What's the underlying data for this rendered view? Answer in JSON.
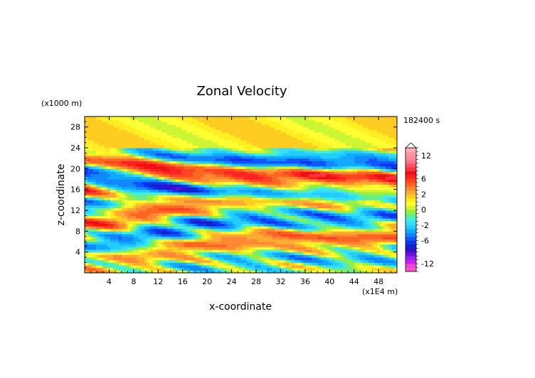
{
  "chart_data": {
    "type": "heatmap",
    "title": "Zonal Velocity",
    "xlabel": "x-coordinate",
    "ylabel": "z-coordinate",
    "x_unit": "(x1E4 m)",
    "y_unit": "(x1000 m)",
    "time_label": "182400 s",
    "xlim": [
      0,
      51
    ],
    "ylim": [
      0,
      30
    ],
    "x_ticks": [
      4,
      8,
      12,
      16,
      20,
      24,
      28,
      32,
      36,
      40,
      44,
      48
    ],
    "y_ticks": [
      4,
      8,
      12,
      16,
      20,
      24,
      28
    ],
    "colorbar": {
      "levels": [
        -14,
        -13,
        -12,
        -11,
        -10,
        -9,
        -8,
        -7,
        -6,
        -5,
        -4,
        -3,
        -2,
        -1.5,
        -1,
        -0.5,
        0,
        0.5,
        1,
        1.5,
        2,
        3,
        4,
        5,
        6,
        7,
        8,
        9,
        10,
        11,
        12,
        13,
        14
      ],
      "tick_labels": [
        "12",
        "6",
        "2",
        "0",
        "-2",
        "-6",
        "-12"
      ],
      "tick_values": [
        12,
        6,
        2,
        0,
        -2,
        -6,
        -12
      ],
      "colors": [
        "#ff55c8",
        "#ee44dd",
        "#cc22ee",
        "#9922ee",
        "#6611dd",
        "#3311cc",
        "#1122cc",
        "#1133ee",
        "#1155ff",
        "#1188ff",
        "#11aaff",
        "#22ccff",
        "#33ddff",
        "#44eedd",
        "#66ee88",
        "#99ee44",
        "#ccf533",
        "#ffff33",
        "#ffee22",
        "#ffcc22",
        "#ffaa33",
        "#ff8833",
        "#ff6622",
        "#ff4422",
        "#ff2222",
        "#ee1111",
        "#ff3344",
        "#ff5566",
        "#ff7788",
        "#ff8899",
        "#ff99aa",
        "#ffaabb"
      ]
    }
  }
}
